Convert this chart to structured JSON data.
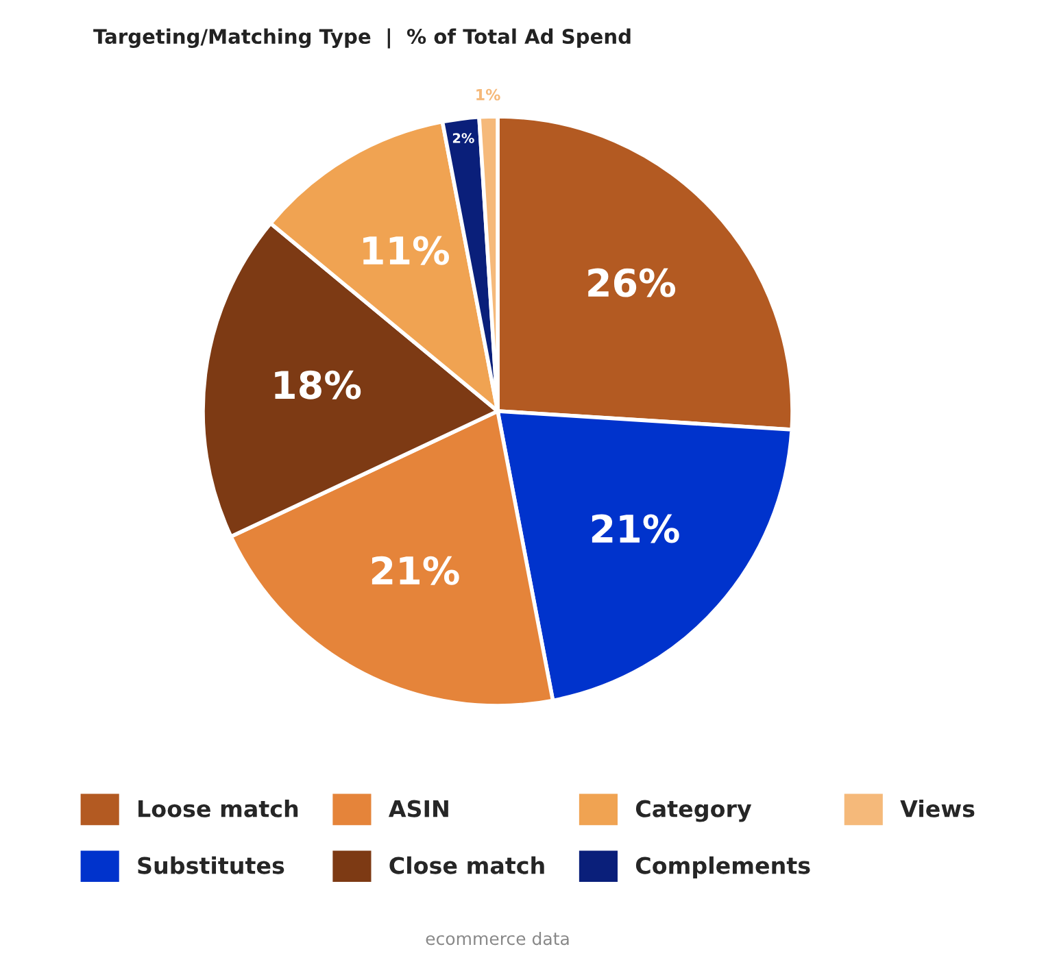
{
  "chart_data": {
    "type": "pie",
    "title": "Targeting/Matching Type  |  % of Total Ad Spend",
    "categories": [
      "Loose match",
      "Substitutes",
      "ASIN",
      "Close match",
      "Category",
      "Complements",
      "Views"
    ],
    "values": [
      26,
      21,
      21,
      18,
      11,
      2,
      1
    ],
    "colors": [
      "#b35a22",
      "#0033cc",
      "#e5843a",
      "#7d3a14",
      "#f0a352",
      "#0a1f7a",
      "#f5b97a"
    ],
    "value_labels": [
      "26%",
      "21%",
      "21%",
      "18%",
      "11%",
      "2%",
      "1%"
    ],
    "legend": "bottom",
    "annotations": [
      "ecommerce data"
    ]
  }
}
